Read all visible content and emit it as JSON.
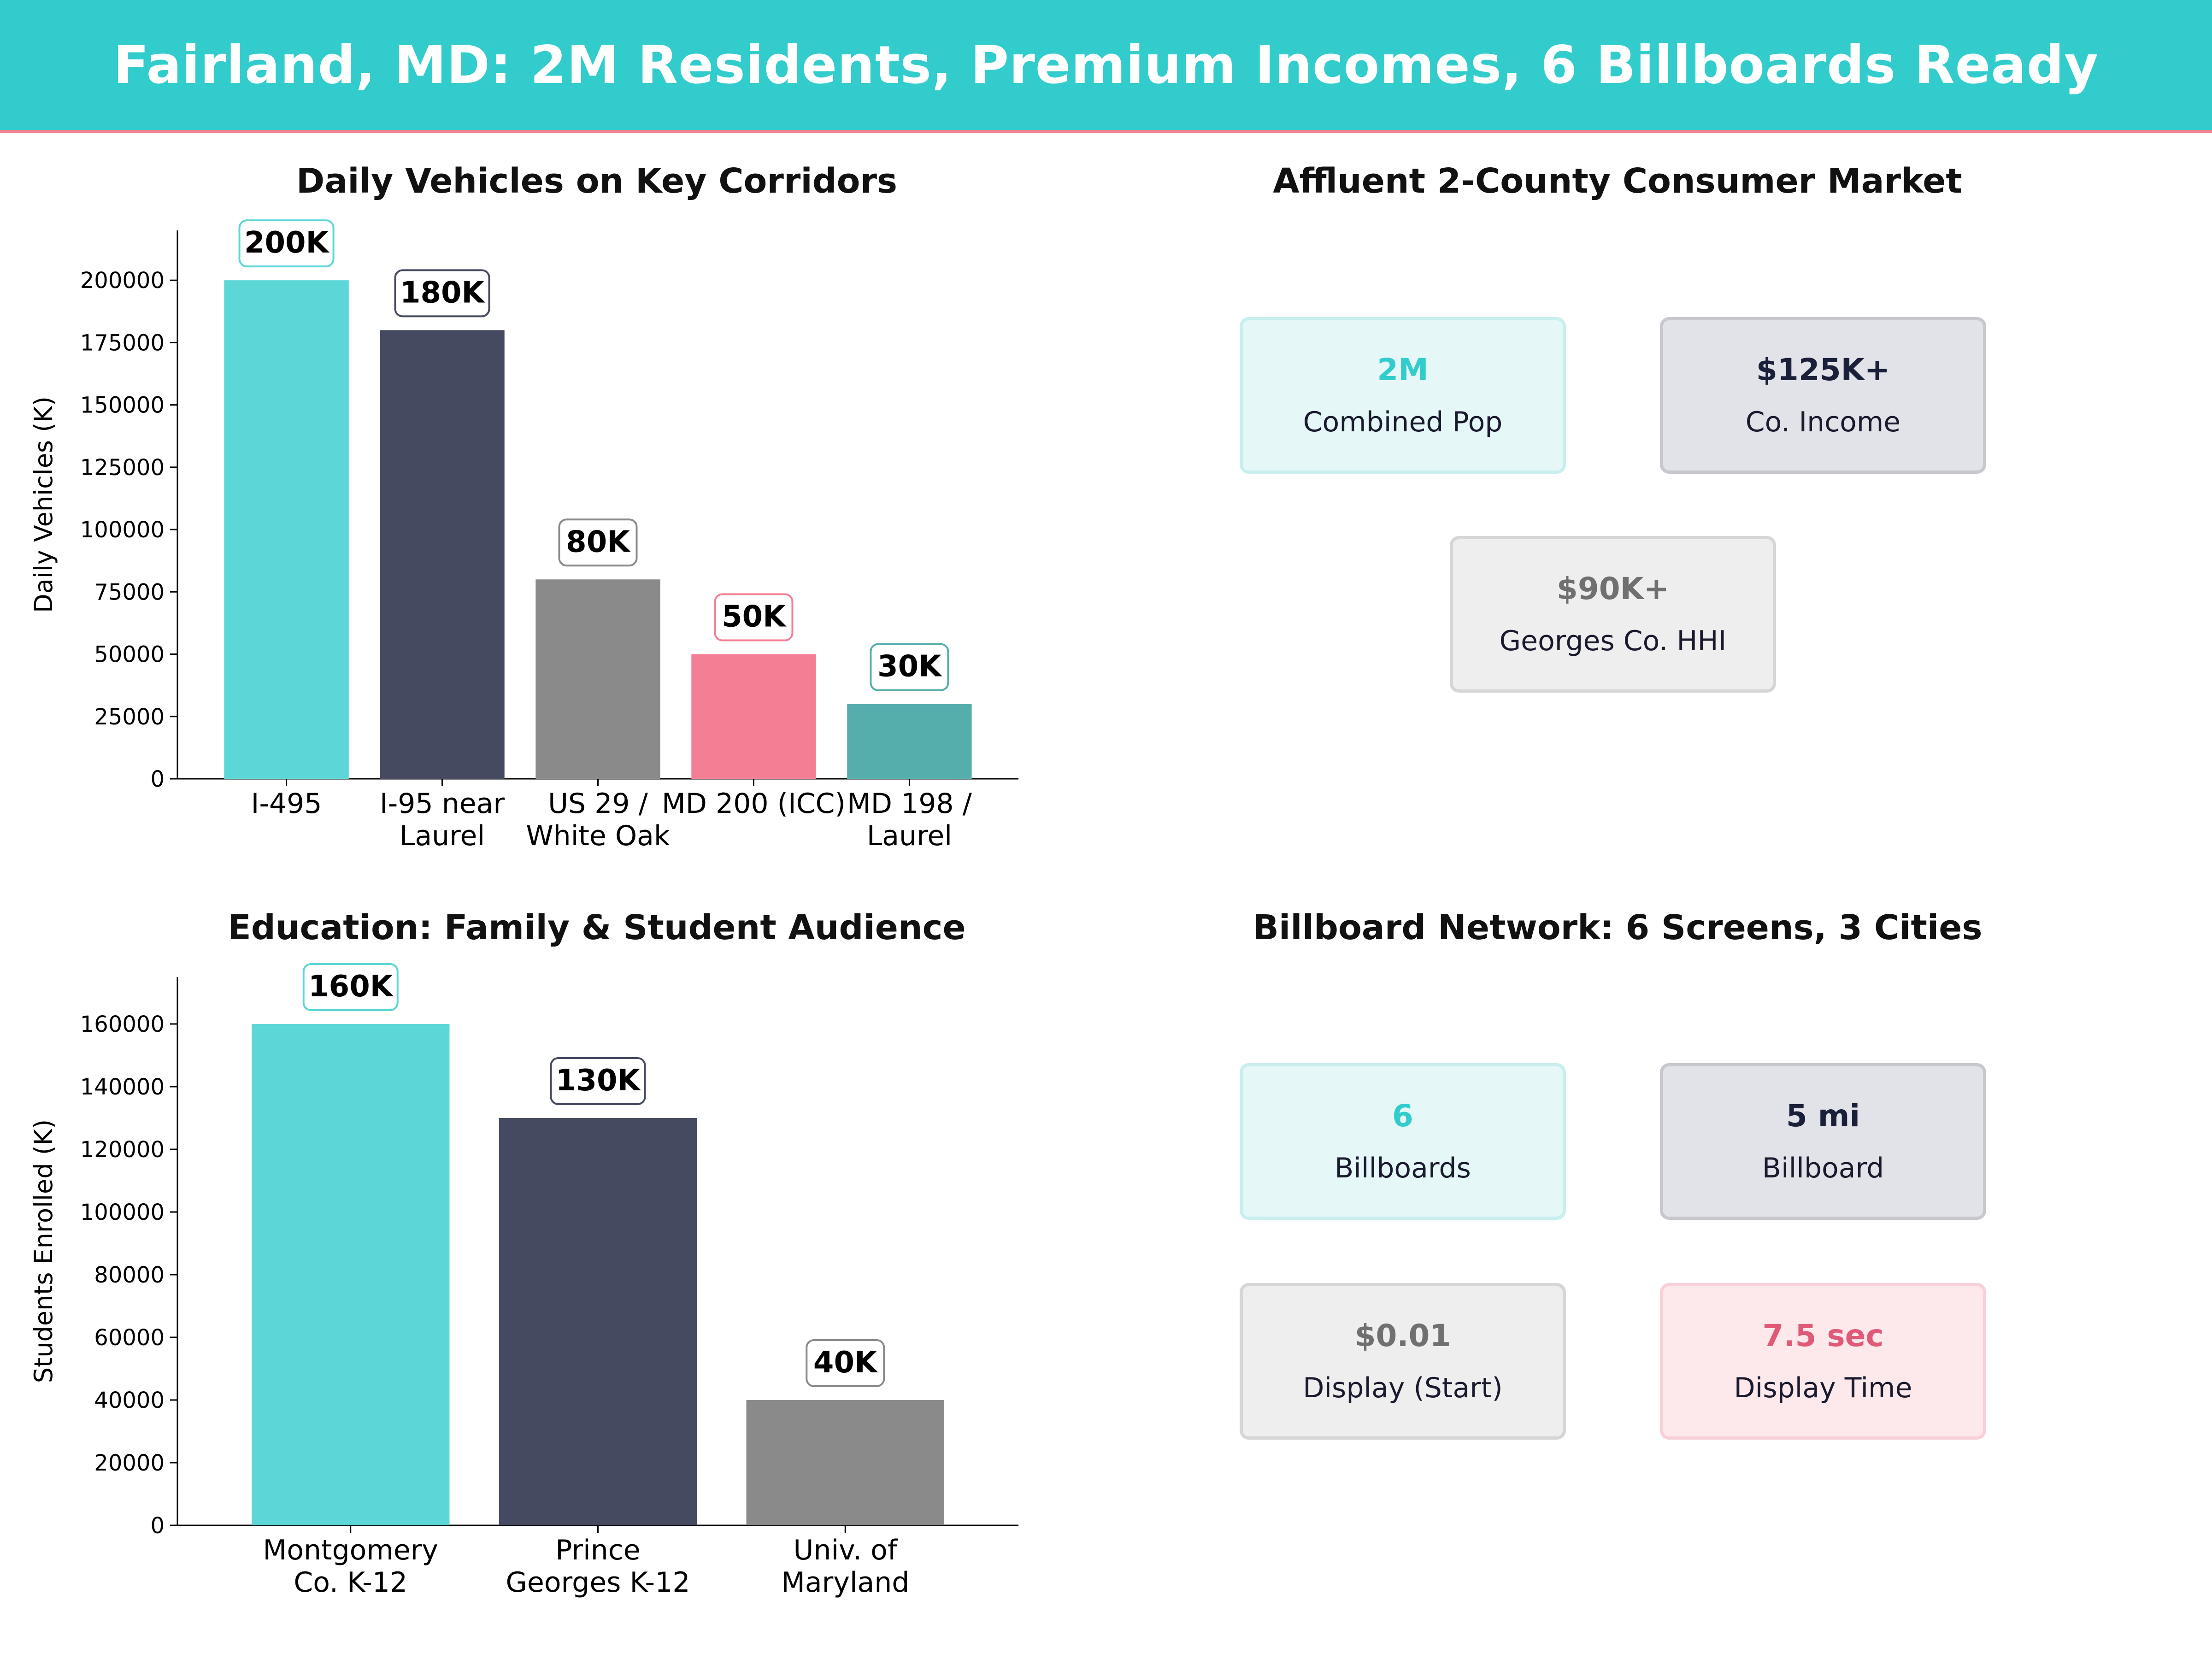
{
  "banner": {
    "title": "Fairland, MD: 2M Residents, Premium Incomes, 6 Billboards Ready",
    "bg_color": "#33cccc",
    "accent_color": "#f08090"
  },
  "chart_data": [
    {
      "type": "bar",
      "title": "Daily Vehicles on Key Corridors",
      "ylabel": "Daily Vehicles (K)",
      "categories": [
        [
          "I-495"
        ],
        [
          "I-95 near",
          "Laurel"
        ],
        [
          "US 29 /",
          "White Oak"
        ],
        [
          "MD 200 (ICC)"
        ],
        [
          "MD 198 /",
          "Laurel"
        ]
      ],
      "values": [
        200000,
        180000,
        80000,
        50000,
        30000
      ],
      "value_labels": [
        "200K",
        "180K",
        "80K",
        "50K",
        "30K"
      ],
      "colors": [
        "#5cd6d6",
        "#454a60",
        "#8a8a8a",
        "#f47e94",
        "#56aeac"
      ],
      "ylim": [
        0,
        220000
      ],
      "yticks": [
        0,
        25000,
        50000,
        75000,
        100000,
        125000,
        150000,
        175000,
        200000
      ],
      "grid": false
    },
    {
      "type": "bar",
      "title": "Education: Family & Student Audience",
      "ylabel": "Students Enrolled (K)",
      "categories": [
        [
          "Montgomery",
          "Co. K-12"
        ],
        [
          "Prince",
          "Georges K-12"
        ],
        [
          "Univ. of",
          "Maryland"
        ]
      ],
      "values": [
        160000,
        130000,
        40000
      ],
      "value_labels": [
        "160K",
        "130K",
        "40K"
      ],
      "colors": [
        "#5cd6d6",
        "#454a60",
        "#8a8a8a"
      ],
      "ylim": [
        0,
        175000
      ],
      "yticks": [
        0,
        20000,
        40000,
        60000,
        80000,
        100000,
        120000,
        140000,
        160000
      ],
      "grid": false
    }
  ],
  "market": {
    "title": "Affluent 2-County Consumer Market",
    "cards": [
      {
        "value": "2M",
        "label": "Combined Pop",
        "value_color": "#33cccc",
        "bg": "#e6f7f7",
        "border": "#c8eeee"
      },
      {
        "value": "$125K+",
        "label": "Co. Income",
        "value_color": "#1a1f3a",
        "bg": "#e2e3e8",
        "border": "#c7c8ce"
      },
      {
        "value": "$90K+",
        "label": "Georges Co. HHI",
        "value_color": "#707070",
        "bg": "#eeeeee",
        "border": "#d6d6d6"
      }
    ]
  },
  "network": {
    "title": "Billboard Network: 6 Screens, 3 Cities",
    "cards": [
      {
        "value": "6",
        "label": "Billboards",
        "value_color": "#33cccc",
        "bg": "#e6f7f7",
        "border": "#c8eeee"
      },
      {
        "value": "5 mi",
        "label": "Billboard",
        "value_color": "#1a1f3a",
        "bg": "#e2e3e8",
        "border": "#c7c8ce"
      },
      {
        "value": "$0.01",
        "label": "Display (Start)",
        "value_color": "#707070",
        "bg": "#eeeeee",
        "border": "#d6d6d6"
      },
      {
        "value": "7.5 sec",
        "label": "Display Time",
        "value_color": "#e05a78",
        "bg": "#fde8ec",
        "border": "#f7d0d8"
      }
    ]
  }
}
